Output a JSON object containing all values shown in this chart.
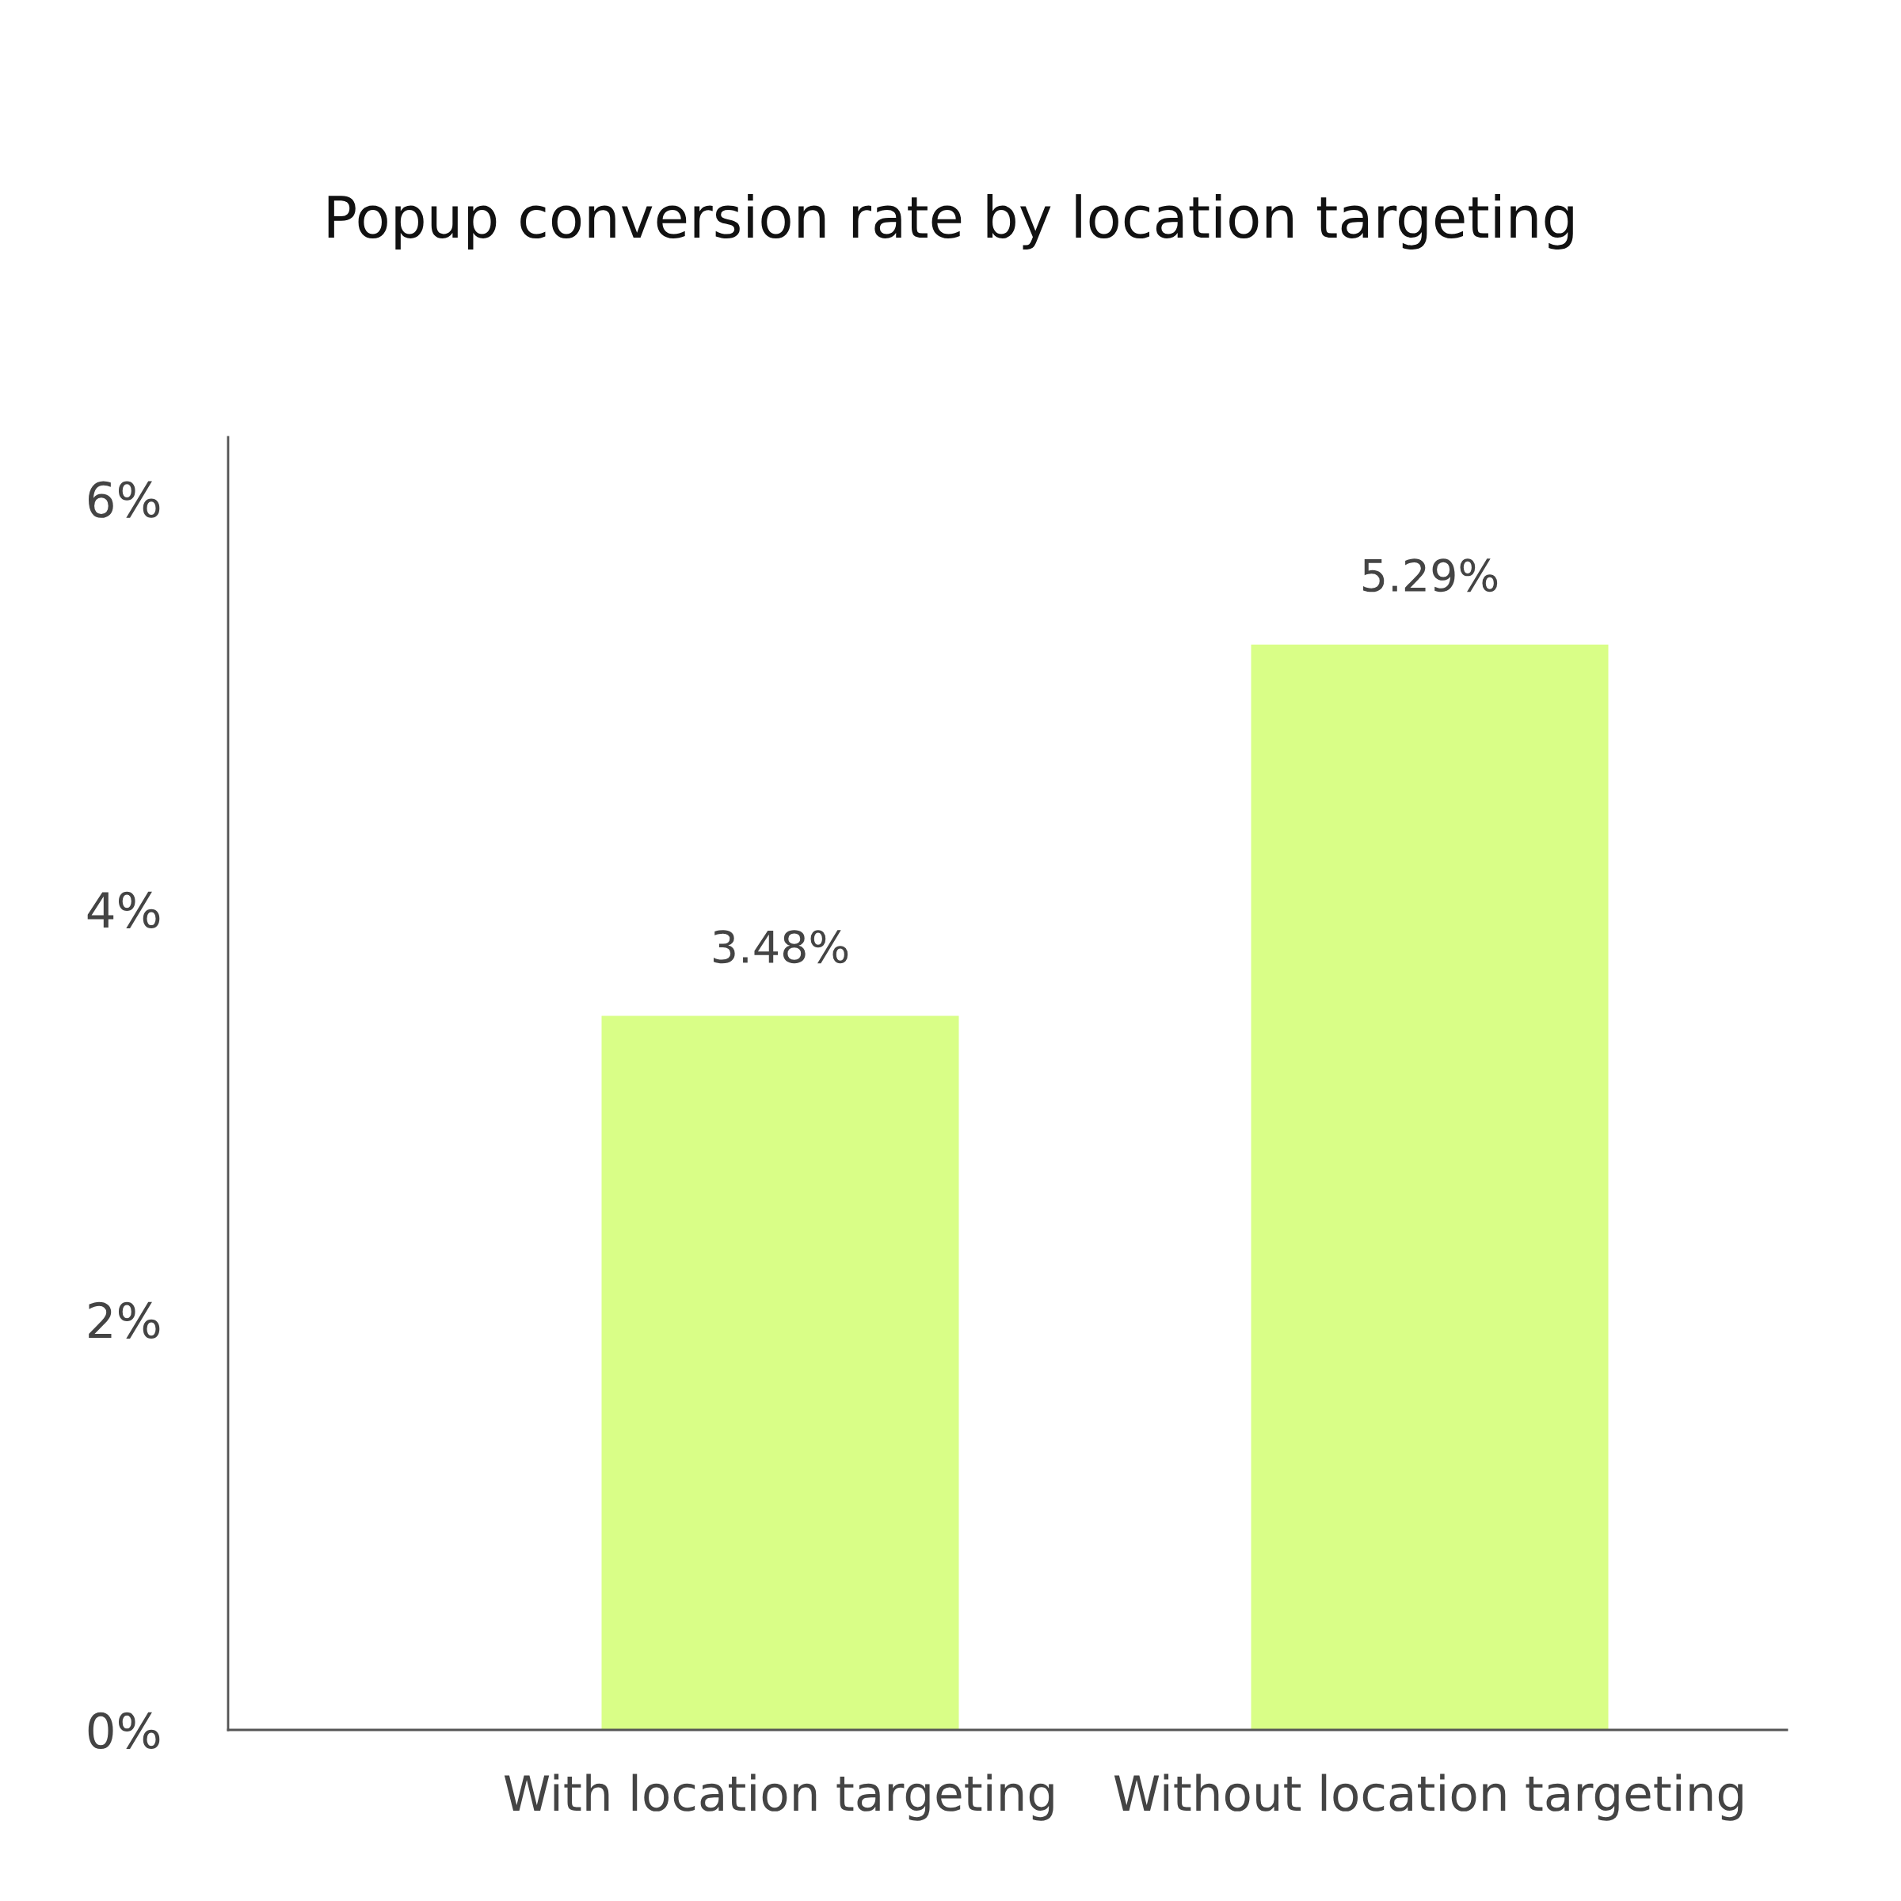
{
  "chart_data": {
    "type": "bar",
    "title": "Popup conversion rate by location targeting",
    "categories": [
      "With location targeting",
      "Without location targeting"
    ],
    "values": [
      3.48,
      5.29
    ],
    "color": "#d9fe87",
    "value_labels": [
      "3.48%",
      "5.29%"
    ],
    "ylim": [
      0,
      6.3
    ],
    "yticks": [
      {
        "value": 0,
        "label": "0%"
      },
      {
        "value": 2,
        "label": "2%"
      },
      {
        "value": 4,
        "label": "4%"
      },
      {
        "value": 6,
        "label": "6%"
      }
    ],
    "grid": false,
    "legend": false
  }
}
